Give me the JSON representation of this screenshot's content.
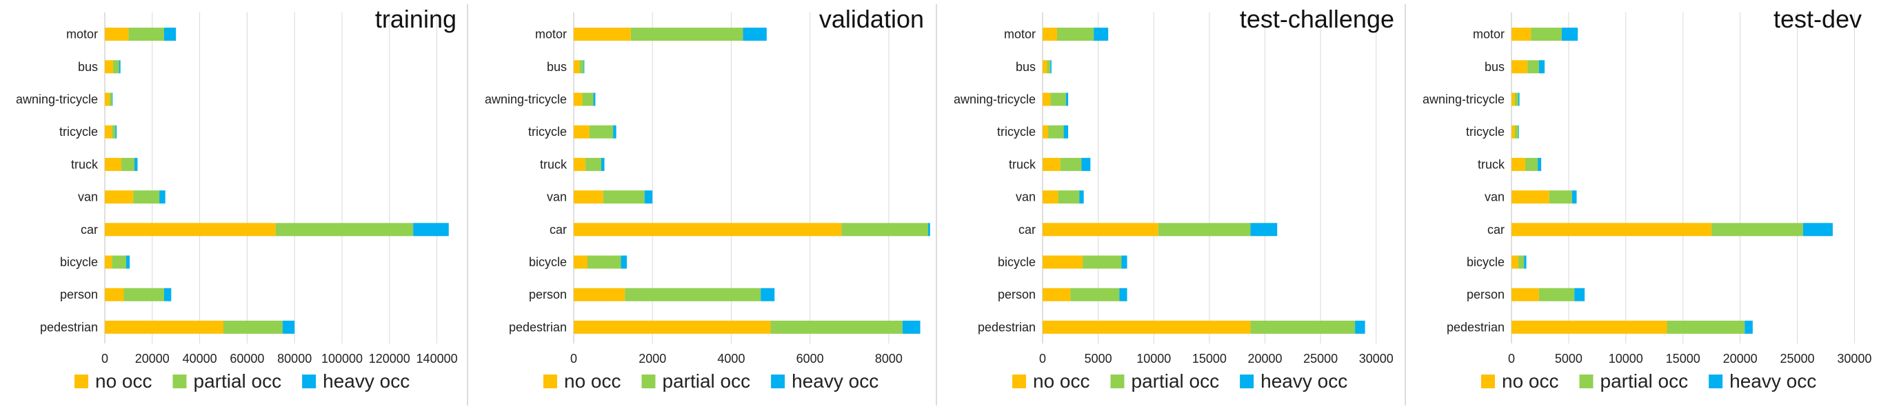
{
  "chart_data": [
    {
      "type": "bar",
      "orientation": "horizontal",
      "stacked": true,
      "title": "training",
      "categories": [
        "motor",
        "bus",
        "awning-tricycle",
        "tricycle",
        "truck",
        "van",
        "car",
        "bicycle",
        "person",
        "pedestrian"
      ],
      "series": [
        {
          "name": "no occ",
          "values": [
            10000,
            3500,
            2000,
            3000,
            7000,
            12000,
            72000,
            3000,
            8000,
            50000
          ]
        },
        {
          "name": "partial occ",
          "values": [
            15000,
            2500,
            1000,
            1500,
            5500,
            11000,
            58000,
            6000,
            17000,
            25000
          ]
        },
        {
          "name": "heavy occ",
          "values": [
            5000,
            600,
            300,
            500,
            1300,
            2500,
            15000,
            1500,
            3000,
            5000
          ]
        }
      ],
      "xlim": [
        0,
        150000
      ],
      "xticks": [
        0,
        20000,
        40000,
        60000,
        80000,
        100000,
        120000,
        140000
      ],
      "grid": true,
      "legend": "bottom"
    },
    {
      "type": "bar",
      "orientation": "horizontal",
      "stacked": true,
      "title": "validation",
      "categories": [
        "motor",
        "bus",
        "awning-tricycle",
        "tricycle",
        "truck",
        "van",
        "car",
        "bicycle",
        "person",
        "pedestrian"
      ],
      "series": [
        {
          "name": "no occ",
          "values": [
            1450,
            150,
            220,
            400,
            300,
            750,
            6800,
            350,
            1300,
            5000
          ]
        },
        {
          "name": "partial occ",
          "values": [
            2850,
            100,
            280,
            600,
            400,
            1050,
            2200,
            850,
            3450,
            3350
          ]
        },
        {
          "name": "heavy occ",
          "values": [
            600,
            20,
            50,
            80,
            80,
            200,
            50,
            150,
            350,
            450
          ]
        }
      ],
      "xlim": [
        0,
        9000
      ],
      "xticks": [
        0,
        2000,
        4000,
        6000,
        8000
      ],
      "grid": true,
      "legend": "bottom"
    },
    {
      "type": "bar",
      "orientation": "horizontal",
      "stacked": true,
      "title": "test-challenge",
      "categories": [
        "motor",
        "bus",
        "awning-tricycle",
        "tricycle",
        "truck",
        "van",
        "car",
        "bicycle",
        "person",
        "pedestrian"
      ],
      "series": [
        {
          "name": "no occ",
          "values": [
            1300,
            400,
            700,
            500,
            1600,
            1400,
            10400,
            3600,
            2500,
            18700
          ]
        },
        {
          "name": "partial occ",
          "values": [
            3300,
            300,
            1400,
            1400,
            1900,
            1900,
            8300,
            3500,
            4400,
            9400
          ]
        },
        {
          "name": "heavy occ",
          "values": [
            1300,
            100,
            200,
            400,
            800,
            400,
            2400,
            500,
            700,
            900
          ]
        }
      ],
      "xlim": [
        0,
        32000
      ],
      "xticks": [
        0,
        5000,
        10000,
        15000,
        20000,
        25000,
        30000
      ],
      "grid": true,
      "legend": "bottom"
    },
    {
      "type": "bar",
      "orientation": "horizontal",
      "stacked": true,
      "title": "test-dev",
      "categories": [
        "motor",
        "bus",
        "awning-tricycle",
        "tricycle",
        "truck",
        "van",
        "car",
        "bicycle",
        "person",
        "pedestrian"
      ],
      "series": [
        {
          "name": "no occ",
          "values": [
            1700,
            1400,
            300,
            300,
            1200,
            3300,
            17500,
            600,
            2400,
            13600
          ]
        },
        {
          "name": "partial occ",
          "values": [
            2700,
            1000,
            300,
            300,
            1100,
            2000,
            8000,
            500,
            3100,
            6800
          ]
        },
        {
          "name": "heavy occ",
          "values": [
            1400,
            500,
            100,
            50,
            300,
            400,
            2600,
            200,
            900,
            700
          ]
        }
      ],
      "xlim": [
        0,
        31000
      ],
      "xticks": [
        0,
        5000,
        10000,
        15000,
        20000,
        25000,
        30000
      ],
      "grid": true,
      "legend": "bottom"
    }
  ],
  "colors": {
    "no occ": "#FFC000",
    "partial occ": "#92D050",
    "heavy occ": "#00B0F0",
    "grid": "#d9d9d9",
    "divider": "#d0d0d0"
  }
}
